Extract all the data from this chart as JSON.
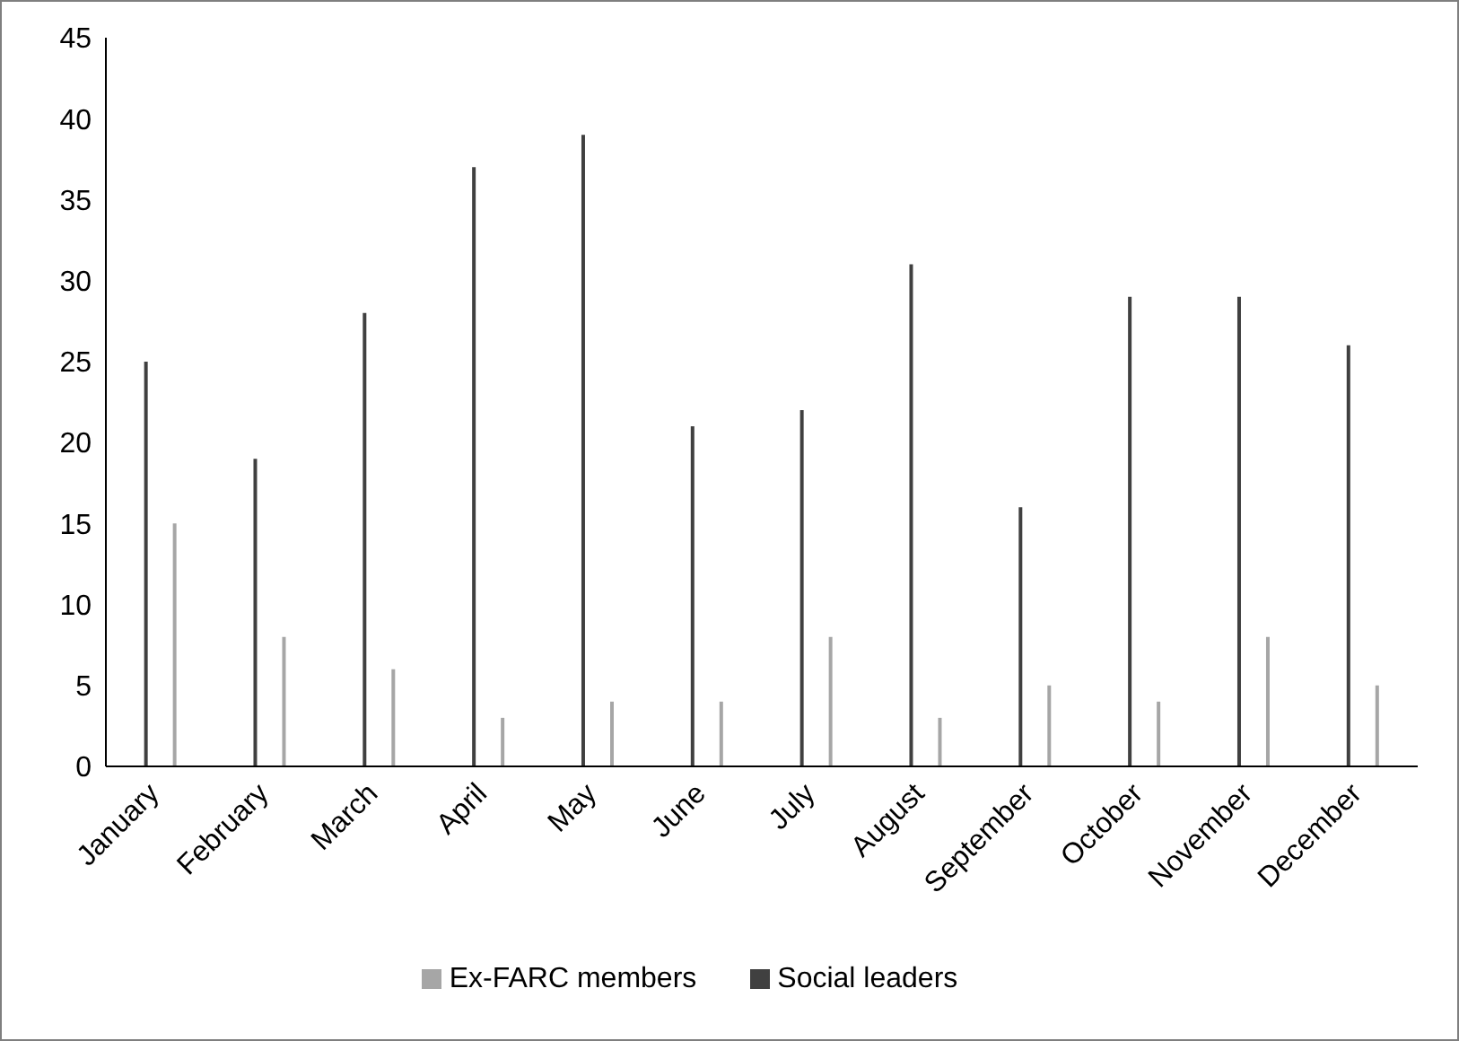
{
  "chart_data": {
    "type": "bar",
    "categories": [
      "January",
      "February",
      "March",
      "April",
      "May",
      "June",
      "July",
      "August",
      "September",
      "October",
      "November",
      "December"
    ],
    "series": [
      {
        "name": "Social leaders",
        "color": "#404040",
        "values": [
          25,
          19,
          28,
          37,
          39,
          21,
          22,
          31,
          16,
          29,
          29,
          26
        ]
      },
      {
        "name": "Ex-FARC members",
        "color": "#a6a6a6",
        "values": [
          15,
          8,
          6,
          3,
          4,
          4,
          8,
          3,
          5,
          4,
          8,
          5
        ]
      }
    ],
    "ylim": [
      0,
      45
    ],
    "yticks": [
      0,
      5,
      10,
      15,
      20,
      25,
      30,
      35,
      40,
      45
    ],
    "grid": false,
    "legend": "bottom"
  }
}
